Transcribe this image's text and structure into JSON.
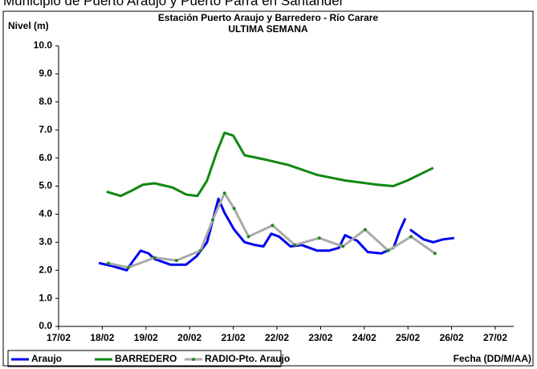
{
  "header": "Municipio de Puerto Araujo y Puerto Parra en Santander",
  "chart_data": {
    "type": "line",
    "title": "Estación Puerto Araujo y Barredero - Río Carare",
    "subtitle": "ULTIMA SEMANA",
    "y_label": "Nivel (m)",
    "x_label": "Fecha (DD/M/AA)",
    "xlim": [
      17,
      27
    ],
    "ylim": [
      0,
      10
    ],
    "xticks": [
      {
        "value": 17,
        "label": "17/02"
      },
      {
        "value": 18,
        "label": "18/02"
      },
      {
        "value": 19,
        "label": "19/02"
      },
      {
        "value": 20,
        "label": "20/02"
      },
      {
        "value": 21,
        "label": "21/02"
      },
      {
        "value": 22,
        "label": "22/02"
      },
      {
        "value": 23,
        "label": "23/02"
      },
      {
        "value": 24,
        "label": "24/02"
      },
      {
        "value": 25,
        "label": "25/02"
      },
      {
        "value": 26,
        "label": "26/02"
      },
      {
        "value": 27,
        "label": "27/02"
      }
    ],
    "yticks": [
      {
        "value": 0,
        "label": "0.0"
      },
      {
        "value": 1,
        "label": "1.0"
      },
      {
        "value": 2,
        "label": "2.0"
      },
      {
        "value": 3,
        "label": "3.0"
      },
      {
        "value": 4,
        "label": "4.0"
      },
      {
        "value": 5,
        "label": "5.0"
      },
      {
        "value": 6,
        "label": "6.0"
      },
      {
        "value": 7,
        "label": "7.0"
      },
      {
        "value": 8,
        "label": "8.0"
      },
      {
        "value": 9,
        "label": "9.0"
      },
      {
        "value": 10,
        "label": "10.0"
      }
    ],
    "series": [
      {
        "name": "Araujo",
        "color": "#0000ee",
        "markers": false,
        "x": [
          17.92,
          18.23,
          18.56,
          18.69,
          18.88,
          19.06,
          19.2,
          19.56,
          19.92,
          20.16,
          20.4,
          20.55,
          20.66,
          20.8,
          21.02,
          21.26,
          21.5,
          21.69,
          21.87,
          22.05,
          22.31,
          22.57,
          22.92,
          23.19,
          23.42,
          23.56,
          23.84,
          24.08,
          24.39,
          24.67,
          24.81,
          24.94,
          25.0,
          25.05,
          25.36,
          25.58,
          25.8,
          26.06
        ],
        "values": [
          2.26,
          2.15,
          2.0,
          2.3,
          2.7,
          2.6,
          2.4,
          2.2,
          2.2,
          2.5,
          3.0,
          3.9,
          4.55,
          4.05,
          3.45,
          3.0,
          2.9,
          2.85,
          3.3,
          3.2,
          2.85,
          2.9,
          2.7,
          2.7,
          2.8,
          3.25,
          3.05,
          2.65,
          2.6,
          2.8,
          3.4,
          3.85,
          null,
          3.45,
          3.1,
          3.0,
          3.1,
          3.15
        ]
      },
      {
        "name": "BARREDERO",
        "color": "#118811",
        "markers": false,
        "x": [
          18.1,
          18.42,
          18.69,
          18.93,
          19.2,
          19.61,
          19.92,
          20.18,
          20.4,
          20.62,
          20.8,
          21.0,
          21.26,
          21.72,
          22.27,
          22.92,
          23.56,
          24.3,
          24.66,
          24.99,
          25.58
        ],
        "values": [
          4.8,
          4.65,
          4.85,
          5.05,
          5.1,
          4.95,
          4.7,
          4.65,
          5.2,
          6.2,
          6.9,
          6.8,
          6.1,
          5.95,
          5.75,
          5.4,
          5.2,
          5.05,
          5.0,
          5.2,
          5.65
        ]
      },
      {
        "name": "RADIO-Pto. Araujo",
        "color": "#aaaaaa",
        "marker_color": "#228822",
        "markers": true,
        "x": [
          18.14,
          18.6,
          19.2,
          19.7,
          20.25,
          20.53,
          20.8,
          21.02,
          21.35,
          21.9,
          22.41,
          22.97,
          23.51,
          24.02,
          24.55,
          25.07,
          25.62
        ],
        "values": [
          2.25,
          2.1,
          2.45,
          2.35,
          2.7,
          3.8,
          4.75,
          4.2,
          3.2,
          3.6,
          2.9,
          3.15,
          2.85,
          3.45,
          2.7,
          3.2,
          2.6
        ]
      }
    ]
  }
}
